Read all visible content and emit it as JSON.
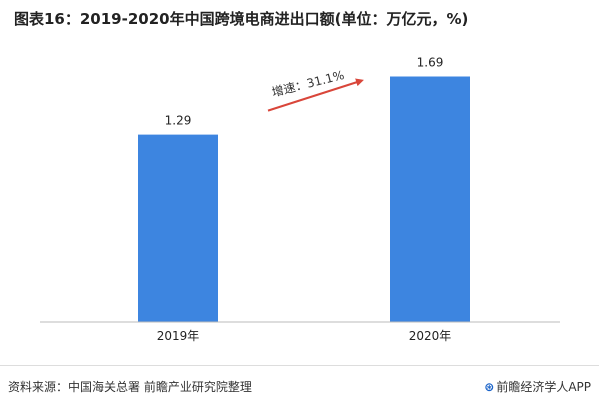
{
  "title": "图表16：2019-2020年中国跨境电商进出口额(单位：万亿元，%)",
  "annotation": "增速：31.1%",
  "footer": {
    "source": "资料来源：中国海关总署 前瞻产业研究院整理",
    "brand": "前瞻经济学人APP"
  },
  "colors": {
    "bar": "#3d85e0",
    "arrow": "#d9463a",
    "axis": "#bbbbbb"
  },
  "chart_data": {
    "type": "bar",
    "categories": [
      "2019年",
      "2020年"
    ],
    "values": [
      1.29,
      1.69
    ],
    "value_labels": [
      "1.29",
      "1.69"
    ],
    "annotation": "增速：31.1%",
    "ylim": [
      0,
      1.9
    ],
    "grid": false,
    "legend": "none"
  }
}
